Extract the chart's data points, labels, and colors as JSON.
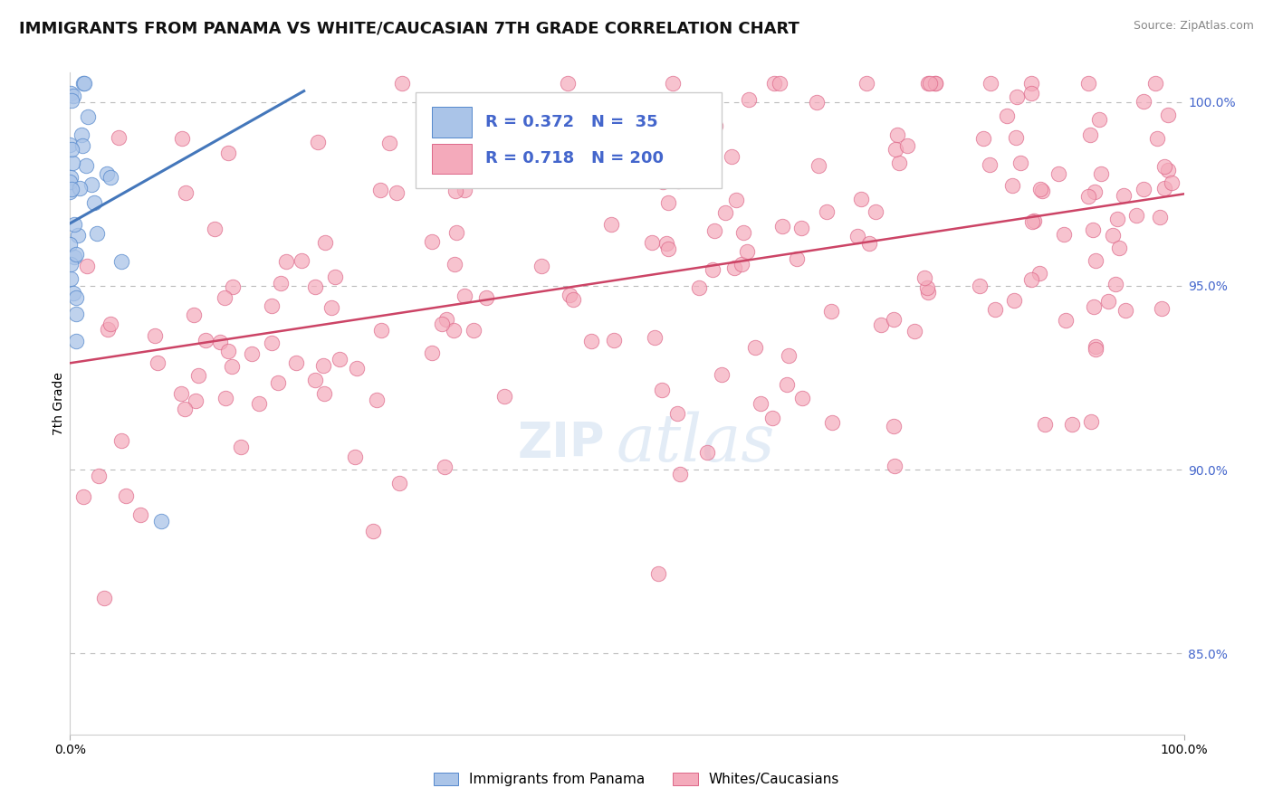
{
  "title": "IMMIGRANTS FROM PANAMA VS WHITE/CAUCASIAN 7TH GRADE CORRELATION CHART",
  "source_text": "Source: ZipAtlas.com",
  "ylabel": "7th Grade",
  "watermark_zip": "ZIP",
  "watermark_atlas": "atlas",
  "blue_R": 0.372,
  "blue_N": 35,
  "pink_R": 0.718,
  "pink_N": 200,
  "blue_color": "#aac4e8",
  "blue_edge_color": "#5588cc",
  "blue_line_color": "#4477bb",
  "pink_color": "#f4aabb",
  "pink_edge_color": "#dd6688",
  "pink_line_color": "#cc4466",
  "right_yticks": [
    0.85,
    0.9,
    0.95,
    1.0
  ],
  "right_yticklabels": [
    "85.0%",
    "90.0%",
    "95.0%",
    "100.0%"
  ],
  "ytick_color": "#4466cc",
  "grid_color": "#bbbbbb",
  "background_color": "#ffffff",
  "title_fontsize": 13,
  "legend_label_blue": "Immigrants from Panama",
  "legend_label_pink": "Whites/Caucasians",
  "ymin": 0.828,
  "ymax": 1.008,
  "xmin": 0.0,
  "xmax": 1.0,
  "pink_line_x0": 0.0,
  "pink_line_y0": 0.929,
  "pink_line_x1": 1.0,
  "pink_line_y1": 0.975,
  "blue_line_x0": 0.0,
  "blue_line_y0": 0.967,
  "blue_line_x1": 0.21,
  "blue_line_y1": 1.003
}
